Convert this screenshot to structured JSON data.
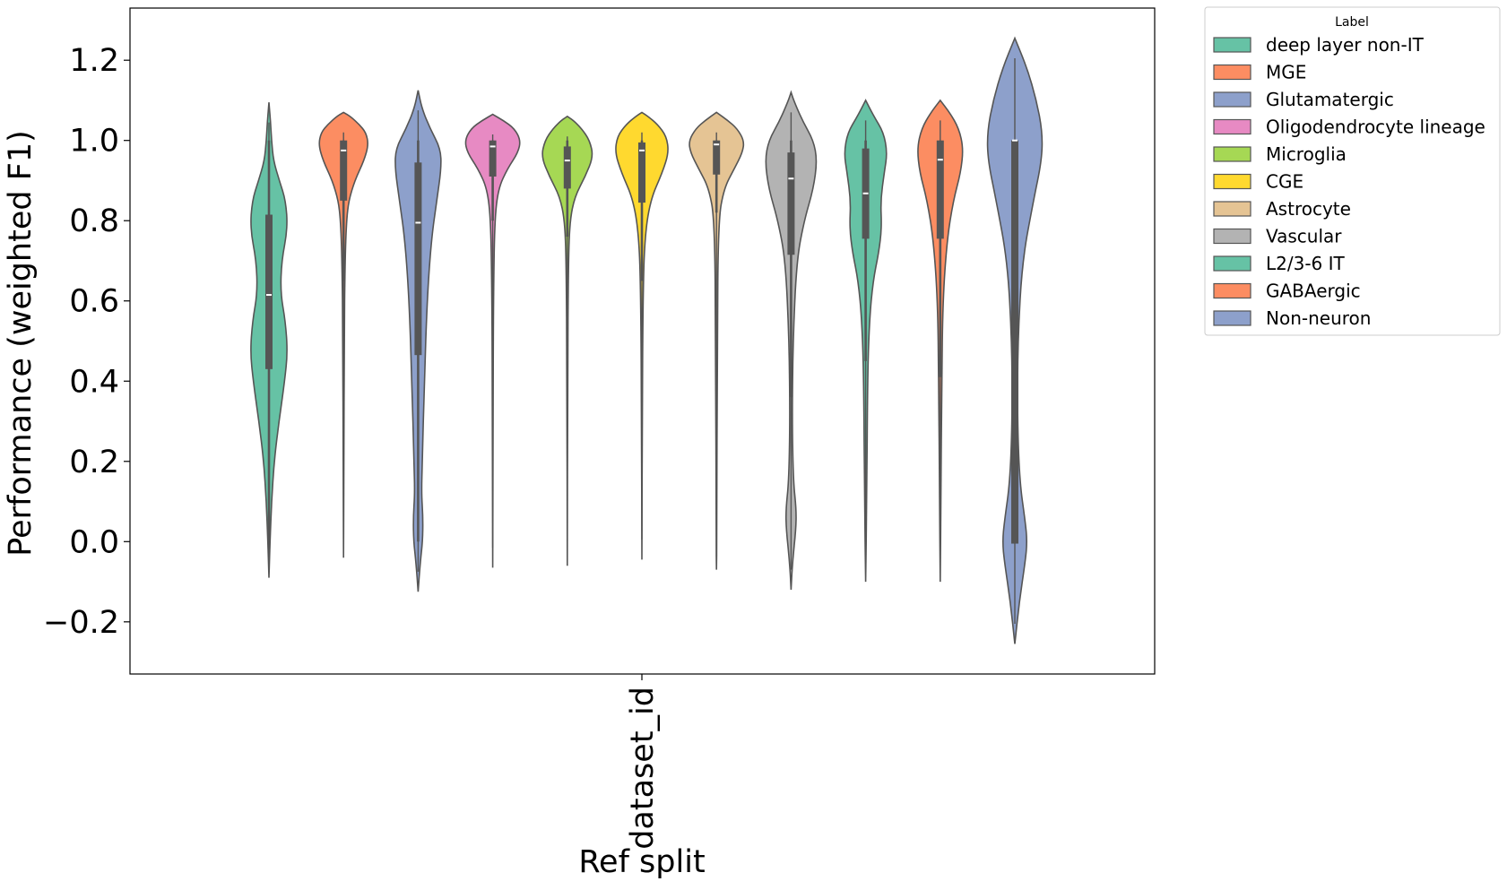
{
  "chart_data": {
    "type": "violin",
    "title": "",
    "xlabel": "Ref split",
    "ylabel": "Performance (weighted F1)",
    "categories": [
      "dataset_id"
    ],
    "ylim": [
      -0.33,
      1.33
    ],
    "yticks": [
      -0.2,
      0.0,
      0.2,
      0.4,
      0.6,
      0.8,
      1.0,
      1.2
    ],
    "ytick_labels": [
      "−0.2",
      "0.0",
      "0.2",
      "0.4",
      "0.6",
      "0.8",
      "1.0",
      "1.2"
    ],
    "grid": false,
    "legend": {
      "title": "Label",
      "placement": "outside-top-right"
    },
    "series": [
      {
        "name": "deep layer non-IT",
        "color": "#66c2a5",
        "whisker": [
          0.0,
          1.0
        ],
        "q1": 0.43,
        "median": 0.615,
        "q3": 0.815,
        "range": [
          -0.09,
          1.095
        ],
        "profile": [
          [
            -0.09,
            0.0
          ],
          [
            0.0,
            0.03
          ],
          [
            0.1,
            0.07
          ],
          [
            0.2,
            0.14
          ],
          [
            0.3,
            0.27
          ],
          [
            0.4,
            0.42
          ],
          [
            0.47,
            0.5
          ],
          [
            0.55,
            0.44
          ],
          [
            0.62,
            0.31
          ],
          [
            0.7,
            0.34
          ],
          [
            0.78,
            0.5
          ],
          [
            0.85,
            0.45
          ],
          [
            0.9,
            0.28
          ],
          [
            0.95,
            0.12
          ],
          [
            1.0,
            0.07
          ],
          [
            1.05,
            0.04
          ],
          [
            1.095,
            0.0
          ]
        ]
      },
      {
        "name": "MGE",
        "color": "#fc8d62",
        "whisker": [
          0.65,
          1.0
        ],
        "q1": 0.85,
        "median": 0.975,
        "q3": 1.0,
        "range": [
          -0.04,
          1.07
        ],
        "profile": [
          [
            -0.04,
            0.0
          ],
          [
            0.2,
            0.01
          ],
          [
            0.5,
            0.02
          ],
          [
            0.7,
            0.04
          ],
          [
            0.8,
            0.08
          ],
          [
            0.85,
            0.14
          ],
          [
            0.9,
            0.3
          ],
          [
            0.95,
            0.55
          ],
          [
            0.99,
            0.67
          ],
          [
            1.02,
            0.6
          ],
          [
            1.04,
            0.42
          ],
          [
            1.06,
            0.18
          ],
          [
            1.07,
            0.0
          ]
        ]
      },
      {
        "name": "Glutamatergic",
        "color": "#8da0cb",
        "whisker": [
          0.0,
          1.0
        ],
        "q1": 0.465,
        "median": 0.795,
        "q3": 0.945,
        "range": [
          -0.125,
          1.125
        ],
        "profile": [
          [
            -0.125,
            0.0
          ],
          [
            -0.05,
            0.06
          ],
          [
            0.0,
            0.12
          ],
          [
            0.06,
            0.13
          ],
          [
            0.12,
            0.09
          ],
          [
            0.2,
            0.11
          ],
          [
            0.4,
            0.17
          ],
          [
            0.6,
            0.24
          ],
          [
            0.75,
            0.35
          ],
          [
            0.85,
            0.5
          ],
          [
            0.93,
            0.62
          ],
          [
            0.98,
            0.6
          ],
          [
            1.03,
            0.32
          ],
          [
            1.08,
            0.1
          ],
          [
            1.125,
            0.0
          ]
        ]
      },
      {
        "name": "Oligodendrocyte lineage",
        "color": "#e78ac3",
        "whisker": [
          0.8,
          1.0
        ],
        "q1": 0.91,
        "median": 0.985,
        "q3": 1.0,
        "range": [
          -0.065,
          1.065
        ],
        "profile": [
          [
            -0.065,
            0.0
          ],
          [
            0.3,
            0.01
          ],
          [
            0.6,
            0.02
          ],
          [
            0.8,
            0.05
          ],
          [
            0.88,
            0.15
          ],
          [
            0.93,
            0.4
          ],
          [
            0.97,
            0.68
          ],
          [
            1.0,
            0.75
          ],
          [
            1.03,
            0.58
          ],
          [
            1.05,
            0.28
          ],
          [
            1.065,
            0.0
          ]
        ]
      },
      {
        "name": "Microglia",
        "color": "#a6d854",
        "whisker": [
          0.76,
          1.0
        ],
        "q1": 0.88,
        "median": 0.95,
        "q3": 0.985,
        "range": [
          -0.06,
          1.06
        ],
        "profile": [
          [
            -0.06,
            0.0
          ],
          [
            0.4,
            0.01
          ],
          [
            0.7,
            0.03
          ],
          [
            0.8,
            0.07
          ],
          [
            0.86,
            0.2
          ],
          [
            0.91,
            0.48
          ],
          [
            0.96,
            0.7
          ],
          [
            1.0,
            0.6
          ],
          [
            1.03,
            0.38
          ],
          [
            1.05,
            0.16
          ],
          [
            1.06,
            0.0
          ]
        ]
      },
      {
        "name": "CGE",
        "color": "#ffd92f",
        "whisker": [
          0.65,
          1.0
        ],
        "q1": 0.845,
        "median": 0.975,
        "q3": 0.995,
        "range": [
          -0.045,
          1.07
        ],
        "profile": [
          [
            -0.045,
            0.0
          ],
          [
            0.3,
            0.01
          ],
          [
            0.6,
            0.03
          ],
          [
            0.75,
            0.07
          ],
          [
            0.85,
            0.22
          ],
          [
            0.92,
            0.55
          ],
          [
            0.97,
            0.72
          ],
          [
            1.01,
            0.66
          ],
          [
            1.04,
            0.42
          ],
          [
            1.06,
            0.16
          ],
          [
            1.07,
            0.0
          ]
        ]
      },
      {
        "name": "Astrocyte",
        "color": "#e5c494",
        "whisker": [
          0.82,
          1.0
        ],
        "q1": 0.915,
        "median": 0.99,
        "q3": 1.0,
        "range": [
          -0.07,
          1.07
        ],
        "profile": [
          [
            -0.07,
            0.0
          ],
          [
            0.0,
            0.01
          ],
          [
            0.5,
            0.02
          ],
          [
            0.8,
            0.05
          ],
          [
            0.88,
            0.2
          ],
          [
            0.93,
            0.48
          ],
          [
            0.97,
            0.7
          ],
          [
            1.0,
            0.74
          ],
          [
            1.03,
            0.55
          ],
          [
            1.05,
            0.3
          ],
          [
            1.07,
            0.0
          ]
        ]
      },
      {
        "name": "Vascular",
        "color": "#b3b3b3",
        "whisker": [
          0.36,
          1.0
        ],
        "q1": 0.715,
        "median": 0.905,
        "q3": 0.97,
        "range": [
          -0.12,
          1.12
        ],
        "profile": [
          [
            -0.12,
            0.0
          ],
          [
            -0.05,
            0.04
          ],
          [
            0.03,
            0.13
          ],
          [
            0.08,
            0.14
          ],
          [
            0.15,
            0.06
          ],
          [
            0.3,
            0.03
          ],
          [
            0.5,
            0.05
          ],
          [
            0.7,
            0.15
          ],
          [
            0.8,
            0.35
          ],
          [
            0.88,
            0.6
          ],
          [
            0.95,
            0.7
          ],
          [
            1.0,
            0.6
          ],
          [
            1.05,
            0.3
          ],
          [
            1.1,
            0.07
          ],
          [
            1.12,
            0.0
          ]
        ]
      },
      {
        "name": "L2/3-6 IT",
        "color": "#66c2a5",
        "whisker": [
          0.45,
          1.0
        ],
        "q1": 0.755,
        "median": 0.868,
        "q3": 0.98,
        "range": [
          -0.1,
          1.1
        ],
        "profile": [
          [
            -0.1,
            0.0
          ],
          [
            0.1,
            0.03
          ],
          [
            0.4,
            0.05
          ],
          [
            0.55,
            0.1
          ],
          [
            0.65,
            0.2
          ],
          [
            0.72,
            0.35
          ],
          [
            0.78,
            0.43
          ],
          [
            0.85,
            0.4
          ],
          [
            0.92,
            0.5
          ],
          [
            0.97,
            0.58
          ],
          [
            1.02,
            0.48
          ],
          [
            1.06,
            0.22
          ],
          [
            1.1,
            0.0
          ]
        ]
      },
      {
        "name": "GABAergic",
        "color": "#fc8d62",
        "whisker": [
          0.41,
          1.0
        ],
        "q1": 0.755,
        "median": 0.952,
        "q3": 1.0,
        "range": [
          -0.1,
          1.1
        ],
        "profile": [
          [
            -0.1,
            0.0
          ],
          [
            0.1,
            0.02
          ],
          [
            0.4,
            0.04
          ],
          [
            0.6,
            0.07
          ],
          [
            0.75,
            0.18
          ],
          [
            0.85,
            0.35
          ],
          [
            0.92,
            0.55
          ],
          [
            0.98,
            0.62
          ],
          [
            1.03,
            0.5
          ],
          [
            1.07,
            0.25
          ],
          [
            1.1,
            0.0
          ]
        ]
      },
      {
        "name": "Non-neuron",
        "color": "#8da0cb",
        "whisker": [
          -0.005,
          1.0
        ],
        "q1": -0.005,
        "median": 1.0,
        "q3": 1.0,
        "range": [
          -0.255,
          1.255
        ],
        "profile": [
          [
            -0.255,
            0.0
          ],
          [
            -0.15,
            0.12
          ],
          [
            -0.05,
            0.28
          ],
          [
            0.0,
            0.33
          ],
          [
            0.05,
            0.28
          ],
          [
            0.15,
            0.13
          ],
          [
            0.3,
            0.07
          ],
          [
            0.5,
            0.08
          ],
          [
            0.7,
            0.2
          ],
          [
            0.85,
            0.5
          ],
          [
            0.95,
            0.72
          ],
          [
            1.02,
            0.74
          ],
          [
            1.1,
            0.58
          ],
          [
            1.18,
            0.33
          ],
          [
            1.255,
            0.0
          ]
        ]
      }
    ]
  }
}
